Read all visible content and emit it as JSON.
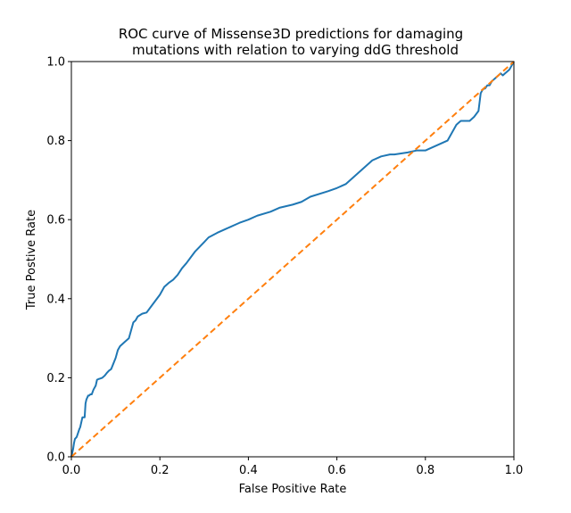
{
  "chart_data": {
    "type": "line",
    "title_lines": [
      "ROC curve of Missense3D predictions for damaging",
      "mutations with relation to varying ddG threshold"
    ],
    "xlabel": "False Positive Rate",
    "ylabel": "True Postive Rate",
    "xlim": [
      0,
      1
    ],
    "ylim": [
      0,
      1
    ],
    "xticks": [
      "0.0",
      "0.2",
      "0.4",
      "0.6",
      "0.8",
      "1.0"
    ],
    "yticks": [
      "0.0",
      "0.2",
      "0.4",
      "0.6",
      "0.8",
      "1.0"
    ],
    "grid": false,
    "legend": "none",
    "series": [
      {
        "color": "#1f77b4",
        "style": "solid",
        "x": [
          0.0,
          0.002,
          0.004,
          0.006,
          0.008,
          0.012,
          0.015,
          0.018,
          0.02,
          0.025,
          0.03,
          0.032,
          0.034,
          0.036,
          0.038,
          0.04,
          0.043,
          0.046,
          0.05,
          0.055,
          0.058,
          0.062,
          0.065,
          0.07,
          0.075,
          0.08,
          0.085,
          0.09,
          0.1,
          0.105,
          0.11,
          0.12,
          0.13,
          0.135,
          0.14,
          0.145,
          0.15,
          0.16,
          0.17,
          0.18,
          0.19,
          0.2,
          0.21,
          0.22,
          0.23,
          0.24,
          0.25,
          0.26,
          0.27,
          0.28,
          0.3,
          0.31,
          0.33,
          0.36,
          0.38,
          0.4,
          0.42,
          0.45,
          0.47,
          0.5,
          0.52,
          0.54,
          0.58,
          0.6,
          0.62,
          0.64,
          0.68,
          0.7,
          0.72,
          0.73,
          0.76,
          0.78,
          0.8,
          0.81,
          0.85,
          0.86,
          0.87,
          0.875,
          0.88,
          0.9,
          0.91,
          0.92,
          0.925,
          0.93,
          0.935,
          0.94,
          0.945,
          0.95,
          0.955,
          0.96,
          0.965,
          0.97,
          0.975,
          0.98,
          0.985,
          0.99,
          0.995,
          1.0
        ],
        "y": [
          0.0,
          0.01,
          0.02,
          0.035,
          0.045,
          0.05,
          0.06,
          0.07,
          0.075,
          0.1,
          0.1,
          0.135,
          0.145,
          0.15,
          0.155,
          0.155,
          0.158,
          0.158,
          0.17,
          0.18,
          0.195,
          0.197,
          0.198,
          0.2,
          0.205,
          0.212,
          0.218,
          0.222,
          0.25,
          0.27,
          0.28,
          0.29,
          0.3,
          0.32,
          0.34,
          0.345,
          0.355,
          0.362,
          0.365,
          0.38,
          0.395,
          0.41,
          0.43,
          0.44,
          0.448,
          0.46,
          0.477,
          0.49,
          0.505,
          0.52,
          0.543,
          0.555,
          0.567,
          0.582,
          0.592,
          0.6,
          0.61,
          0.62,
          0.63,
          0.638,
          0.645,
          0.658,
          0.672,
          0.68,
          0.69,
          0.71,
          0.75,
          0.76,
          0.765,
          0.765,
          0.77,
          0.775,
          0.775,
          0.78,
          0.8,
          0.82,
          0.84,
          0.845,
          0.85,
          0.85,
          0.86,
          0.875,
          0.92,
          0.93,
          0.932,
          0.94,
          0.94,
          0.95,
          0.955,
          0.96,
          0.965,
          0.97,
          0.965,
          0.97,
          0.975,
          0.98,
          0.99,
          1.0
        ]
      },
      {
        "color": "#ff7f0e",
        "style": "dashed",
        "x": [
          0,
          1
        ],
        "y": [
          0,
          1
        ]
      }
    ]
  }
}
